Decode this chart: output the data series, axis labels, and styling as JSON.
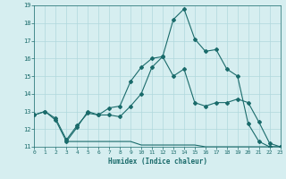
{
  "xlabel": "Humidex (Indice chaleur)",
  "bg_color": "#d6eef0",
  "grid_color": "#b0d8dc",
  "line_color": "#1a6b6b",
  "ylim": [
    11,
    19
  ],
  "xlim": [
    0,
    23
  ],
  "yticks": [
    11,
    12,
    13,
    14,
    15,
    16,
    17,
    18,
    19
  ],
  "xticks": [
    0,
    1,
    2,
    3,
    4,
    5,
    6,
    7,
    8,
    9,
    10,
    11,
    12,
    13,
    14,
    15,
    16,
    17,
    18,
    19,
    20,
    21,
    22,
    23
  ],
  "line1_x": [
    0,
    1,
    2,
    3,
    4,
    5,
    6,
    7,
    8,
    9,
    10,
    11,
    12,
    13,
    14,
    15,
    16,
    17,
    18,
    19,
    20,
    21,
    22,
    23
  ],
  "line1_y": [
    12.8,
    13.0,
    12.5,
    11.3,
    12.1,
    13.0,
    12.8,
    12.8,
    12.7,
    13.3,
    14.0,
    15.5,
    16.1,
    15.0,
    15.4,
    13.5,
    13.3,
    13.5,
    13.5,
    13.7,
    13.5,
    12.4,
    11.2,
    11.0
  ],
  "line2_x": [
    0,
    1,
    2,
    3,
    4,
    5,
    6,
    7,
    8,
    9,
    10,
    11,
    12,
    13,
    14,
    15,
    16,
    17,
    18,
    19,
    20,
    21,
    22,
    23
  ],
  "line2_y": [
    12.8,
    13.0,
    12.6,
    11.4,
    12.2,
    12.9,
    12.8,
    13.2,
    13.3,
    14.7,
    15.5,
    16.0,
    16.1,
    18.2,
    18.8,
    17.1,
    16.4,
    16.5,
    15.4,
    15.0,
    12.3,
    11.3,
    11.0,
    11.0
  ],
  "line3_x": [
    3,
    4,
    5,
    6,
    7,
    8,
    9,
    10,
    11,
    12,
    13,
    14,
    15,
    16,
    17,
    18,
    19,
    20,
    21,
    22,
    23
  ],
  "line3_y": [
    11.3,
    11.3,
    11.3,
    11.3,
    11.3,
    11.3,
    11.3,
    11.1,
    11.1,
    11.1,
    11.1,
    11.1,
    11.1,
    11.0,
    11.0,
    11.0,
    11.0,
    11.0,
    11.0,
    11.0,
    11.0
  ]
}
